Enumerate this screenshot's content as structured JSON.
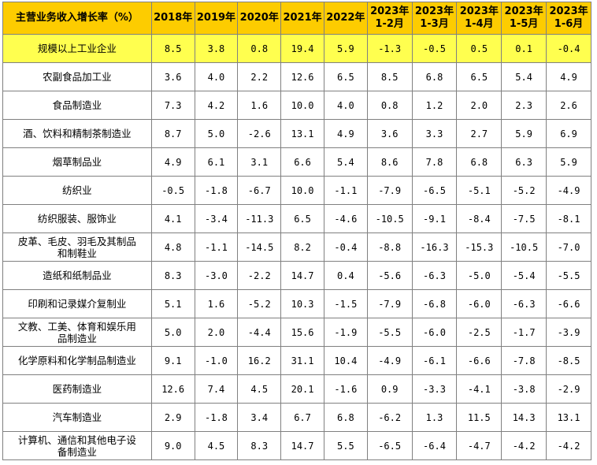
{
  "colors": {
    "header_bg": "#fdcc00",
    "highlight_bg": "#ffff4f",
    "border": "#808080"
  },
  "header": {
    "title": "主营业务收入增长率（%）",
    "columns": [
      [
        "2018年"
      ],
      [
        "2019年"
      ],
      [
        "2020年"
      ],
      [
        "2021年"
      ],
      [
        "2022年"
      ],
      [
        "2023年",
        "1-2月"
      ],
      [
        "2023年",
        "1-3月"
      ],
      [
        "2023年",
        "1-4月"
      ],
      [
        "2023年",
        "1-5月"
      ],
      [
        "2023年",
        "1-6月"
      ]
    ]
  },
  "rows": [
    {
      "name": [
        "规模以上工业企业"
      ],
      "values": [
        "8.5",
        "3.8",
        "0.8",
        "19.4",
        "5.9",
        "-1.3",
        "-0.5",
        "0.5",
        "0.1",
        "-0.4"
      ],
      "highlight": true
    },
    {
      "name": [
        "农副食品加工业"
      ],
      "values": [
        "3.6",
        "4.0",
        "2.2",
        "12.6",
        "6.5",
        "8.5",
        "6.8",
        "6.5",
        "5.4",
        "4.9"
      ]
    },
    {
      "name": [
        "食品制造业"
      ],
      "values": [
        "7.3",
        "4.2",
        "1.6",
        "10.0",
        "4.0",
        "0.8",
        "1.2",
        "2.0",
        "2.3",
        "2.6"
      ]
    },
    {
      "name": [
        "酒、饮料和精制茶制造业"
      ],
      "values": [
        "8.7",
        "5.0",
        "-2.6",
        "13.1",
        "4.9",
        "3.6",
        "3.3",
        "2.7",
        "5.9",
        "6.9"
      ]
    },
    {
      "name": [
        "烟草制品业"
      ],
      "values": [
        "4.9",
        "6.1",
        "3.1",
        "6.6",
        "5.4",
        "8.6",
        "7.8",
        "6.8",
        "6.3",
        "5.9"
      ]
    },
    {
      "name": [
        "纺织业"
      ],
      "values": [
        "-0.5",
        "-1.8",
        "-6.7",
        "10.0",
        "-1.1",
        "-7.9",
        "-6.5",
        "-5.1",
        "-5.2",
        "-4.9"
      ]
    },
    {
      "name": [
        "纺织服装、服饰业"
      ],
      "values": [
        "4.1",
        "-3.4",
        "-11.3",
        "6.5",
        "-4.6",
        "-10.5",
        "-9.1",
        "-8.4",
        "-7.5",
        "-8.1"
      ]
    },
    {
      "name": [
        "皮革、毛皮、羽毛及其制品",
        "和制鞋业"
      ],
      "values": [
        "4.8",
        "-1.1",
        "-14.5",
        "8.2",
        "-0.4",
        "-8.8",
        "-16.3",
        "-15.3",
        "-10.5",
        "-7.0"
      ]
    },
    {
      "name": [
        "造纸和纸制品业"
      ],
      "values": [
        "8.3",
        "-3.0",
        "-2.2",
        "14.7",
        "0.4",
        "-5.6",
        "-6.3",
        "-5.0",
        "-5.4",
        "-5.5"
      ]
    },
    {
      "name": [
        "印刷和记录媒介复制业"
      ],
      "values": [
        "5.1",
        "1.6",
        "-5.2",
        "10.3",
        "-1.5",
        "-7.9",
        "-6.8",
        "-6.0",
        "-6.3",
        "-6.6"
      ]
    },
    {
      "name": [
        "文教、工美、体育和娱乐用",
        "品制造业"
      ],
      "values": [
        "5.0",
        "2.0",
        "-4.4",
        "15.6",
        "-1.9",
        "-5.5",
        "-6.0",
        "-2.5",
        "-1.7",
        "-3.9"
      ]
    },
    {
      "name": [
        "化学原料和化学制品制造业"
      ],
      "values": [
        "9.1",
        "-1.0",
        "16.2",
        "31.1",
        "10.4",
        "-4.9",
        "-6.1",
        "-6.6",
        "-7.8",
        "-8.5"
      ]
    },
    {
      "name": [
        "医药制造业"
      ],
      "values": [
        "12.6",
        "7.4",
        "4.5",
        "20.1",
        "-1.6",
        "0.9",
        "-3.3",
        "-4.1",
        "-3.8",
        "-2.9"
      ]
    },
    {
      "name": [
        "汽车制造业"
      ],
      "values": [
        "2.9",
        "-1.8",
        "3.4",
        "6.7",
        "6.8",
        "-6.2",
        "1.3",
        "11.5",
        "14.3",
        "13.1"
      ]
    },
    {
      "name": [
        "计算机、通信和其他电子设",
        "备制造业"
      ],
      "values": [
        "9.0",
        "4.5",
        "8.3",
        "14.7",
        "5.5",
        "-6.5",
        "-6.4",
        "-4.7",
        "-4.2",
        "-4.2"
      ]
    }
  ]
}
